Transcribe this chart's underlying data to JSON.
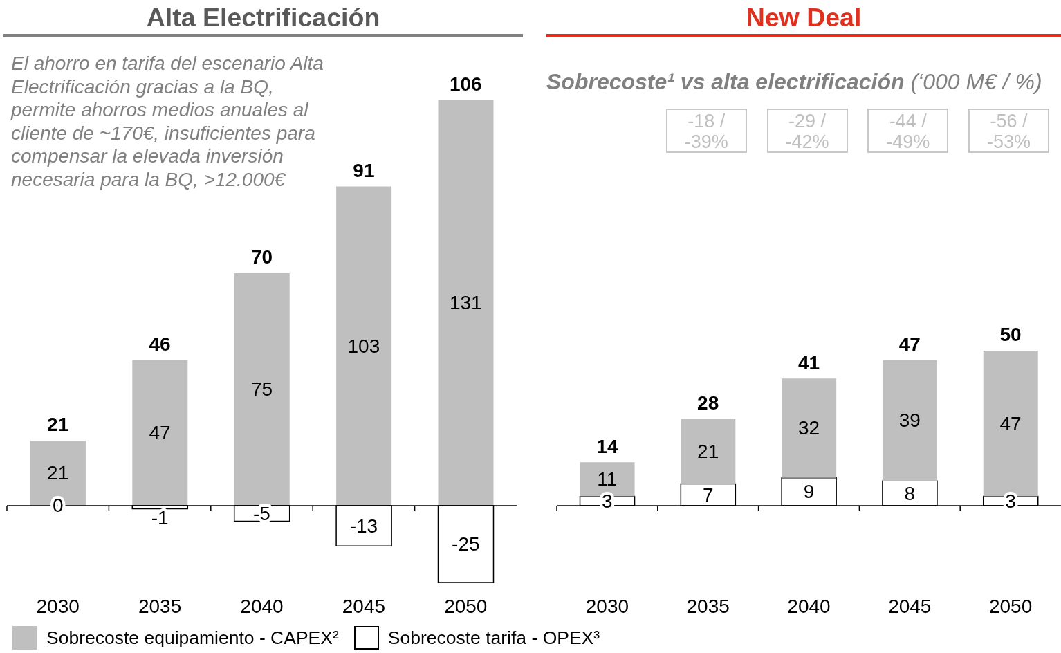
{
  "chart_data": [
    {
      "type": "bar",
      "title": "Alta Electrificación",
      "annotations": [
        "El ahorro en tarifa del escenario Alta Electrificación gracias a la BQ, permite ahorros medios anuales al cliente de ~170€, insuficientes para compensar la elevada inversión necesaria para la BQ, >12.000€"
      ],
      "categories": [
        "2030",
        "2035",
        "2040",
        "2045",
        "2050"
      ],
      "series": [
        {
          "color": "#bfbfbf",
          "values": [
            21,
            47,
            75,
            103,
            131
          ]
        },
        {
          "color": "#ffffff",
          "values": [
            0,
            -1,
            -5,
            -13,
            -25
          ]
        }
      ],
      "stacked": true,
      "data_labels": true,
      "totals": [
        "21",
        "46",
        "70",
        "91",
        "106"
      ],
      "tick_labels": "x"
    },
    {
      "type": "bar",
      "title": "New Deal",
      "subtitle": "Sobrecoste¹ vs alta electrificación (‘000 M€ / %)",
      "annotations": [
        "-18 / -39%",
        "-29 / -42%",
        "-44 / -49%",
        "-56 / -53%"
      ],
      "categories": [
        "2030",
        "2035",
        "2040",
        "2045",
        "2050"
      ],
      "series": [
        {
          "name": "Sobrecoste tarifa - OPEX³",
          "color": "#ffffff",
          "values": [
            3,
            7,
            9,
            8,
            3
          ]
        },
        {
          "name": "Sobrecoste equipamiento - CAPEX²",
          "color": "#bfbfbf",
          "values": [
            11,
            21,
            32,
            39,
            47
          ]
        }
      ],
      "stacked": true,
      "data_labels": true,
      "totals": [
        "14",
        "28",
        "41",
        "47",
        "50"
      ],
      "legend": "bottom left",
      "tick_labels": "x"
    }
  ]
}
